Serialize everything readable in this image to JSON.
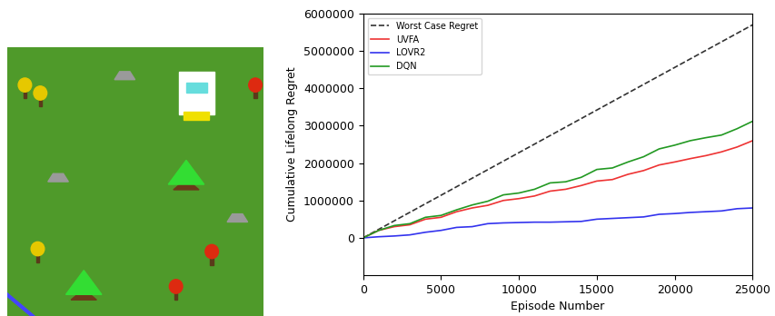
{
  "chart_data": {
    "type": "line",
    "xlabel": "Episode Number",
    "ylabel": "Cumulative Lifelong Regret",
    "xlim": [
      0,
      25000
    ],
    "xticks": [
      0,
      5000,
      10000,
      15000,
      20000,
      25000
    ],
    "ylim": [
      -1000000,
      6000000
    ],
    "yticks": [
      0,
      1000000,
      2000000,
      3000000,
      4000000,
      5000000,
      6000000
    ],
    "legend": "upper left",
    "x": [
      0,
      1000,
      2000,
      3000,
      4000,
      5000,
      6000,
      7000,
      8000,
      9000,
      10000,
      11000,
      12000,
      13000,
      14000,
      15000,
      16000,
      17000,
      18000,
      19000,
      20000,
      21000,
      22000,
      23000,
      24000,
      25000
    ],
    "series": [
      {
        "name": "Worst Case Regret",
        "color": "#333333",
        "line_style": "dashed",
        "x": [
          0,
          25000
        ],
        "values": [
          0,
          5700000
        ]
      },
      {
        "name": "UVFA",
        "color": "#ee3333",
        "line_style": "solid",
        "values": [
          0,
          200000,
          300000,
          350000,
          500000,
          550000,
          700000,
          800000,
          870000,
          1000000,
          1050000,
          1120000,
          1250000,
          1300000,
          1400000,
          1520000,
          1560000,
          1700000,
          1800000,
          1950000,
          2030000,
          2120000,
          2200000,
          2300000,
          2430000,
          2600000
        ]
      },
      {
        "name": "LOVR2",
        "color": "#3333ee",
        "line_style": "solid",
        "values": [
          0,
          30000,
          50000,
          80000,
          150000,
          200000,
          280000,
          300000,
          380000,
          400000,
          410000,
          420000,
          420000,
          430000,
          440000,
          500000,
          520000,
          540000,
          560000,
          630000,
          650000,
          680000,
          700000,
          720000,
          780000,
          800000
        ]
      },
      {
        "name": "DQN",
        "color": "#229922",
        "line_style": "solid",
        "values": [
          0,
          200000,
          330000,
          380000,
          550000,
          600000,
          750000,
          880000,
          980000,
          1150000,
          1200000,
          1300000,
          1470000,
          1500000,
          1620000,
          1830000,
          1870000,
          2030000,
          2170000,
          2380000,
          2480000,
          2600000,
          2680000,
          2750000,
          2920000,
          3120000
        ]
      }
    ]
  }
}
